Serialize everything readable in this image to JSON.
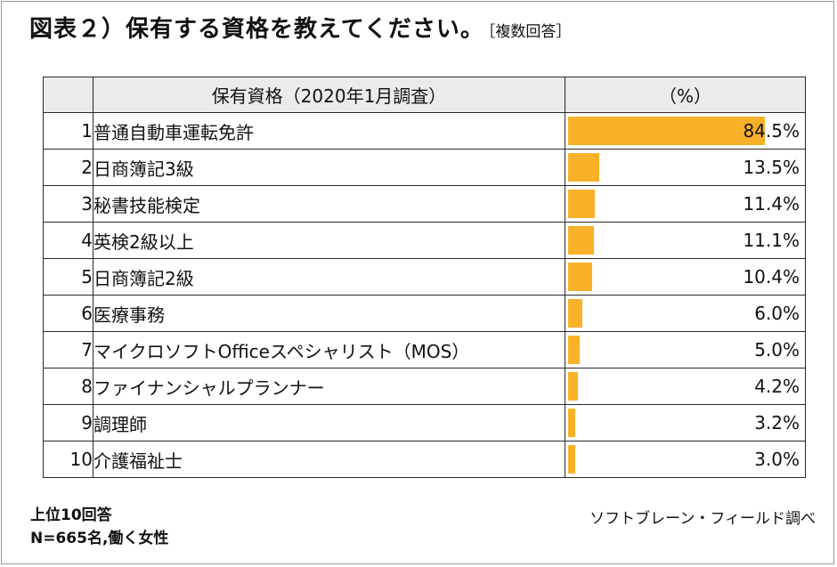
{
  "title": "図表２）保有する資格を教えてください。",
  "title_note": "［複数回答］",
  "columns": {
    "rank": "",
    "name": "保有資格（2020年1月調査）",
    "value": "（%）"
  },
  "accent_color": "#f9b12a",
  "chart_data": {
    "type": "bar",
    "orientation": "horizontal",
    "categories": [
      "普通自動車運転免許",
      "日商簿記3級",
      "秘書技能検定",
      "英検2級以上",
      "日商簿記2級",
      "医療事務",
      "マイクロソフトOfficeスペシャリスト（MOS）",
      "ファイナンシャルプランナー",
      "調理師",
      "介護福祉士"
    ],
    "ranks": [
      "1",
      "2",
      "3",
      "4",
      "5",
      "6",
      "7",
      "8",
      "9",
      "10"
    ],
    "values": [
      84.5,
      13.5,
      11.4,
      11.1,
      10.4,
      6.0,
      5.0,
      4.2,
      3.2,
      3.0
    ],
    "labels": [
      "84.5%",
      "13.5%",
      "11.4%",
      "11.1%",
      "10.4%",
      "6.0%",
      "5.0%",
      "4.2%",
      "3.2%",
      "3.0%"
    ],
    "unit": "%",
    "xlim": [
      0,
      100
    ]
  },
  "footer": {
    "note1": "上位10回答",
    "note2": "N=665名,働く女性",
    "source": "ソフトブレーン・フィールド調べ"
  }
}
